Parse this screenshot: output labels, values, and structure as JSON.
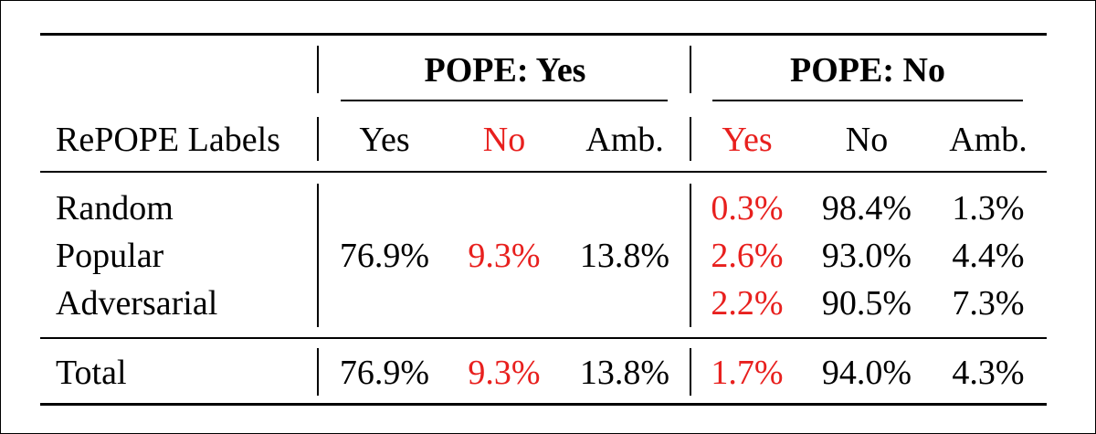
{
  "header": {
    "group_yes": "POPE: Yes",
    "group_no": "POPE: No",
    "row_label": "RePOPE Labels",
    "cols": [
      "Yes",
      "No",
      "Amb.",
      "Yes",
      "No",
      "Amb."
    ]
  },
  "rows": [
    {
      "label": "Random",
      "no_yes": "0.3%",
      "no_no": "98.4%",
      "no_amb": "1.3%"
    },
    {
      "label": "Popular",
      "no_yes": "2.6%",
      "no_no": "93.0%",
      "no_amb": "4.4%"
    },
    {
      "label": "Adversarial",
      "no_yes": "2.2%",
      "no_no": "90.5%",
      "no_amb": "7.3%"
    }
  ],
  "merged_yes": {
    "yes": "76.9%",
    "no": "9.3%",
    "amb": "13.8%"
  },
  "total": {
    "label": "Total",
    "yes_yes": "76.9%",
    "yes_no": "9.3%",
    "yes_amb": "13.8%",
    "no_yes": "1.7%",
    "no_no": "94.0%",
    "no_amb": "4.3%"
  },
  "colors": {
    "highlight": "#e8201e",
    "text": "#000000"
  }
}
